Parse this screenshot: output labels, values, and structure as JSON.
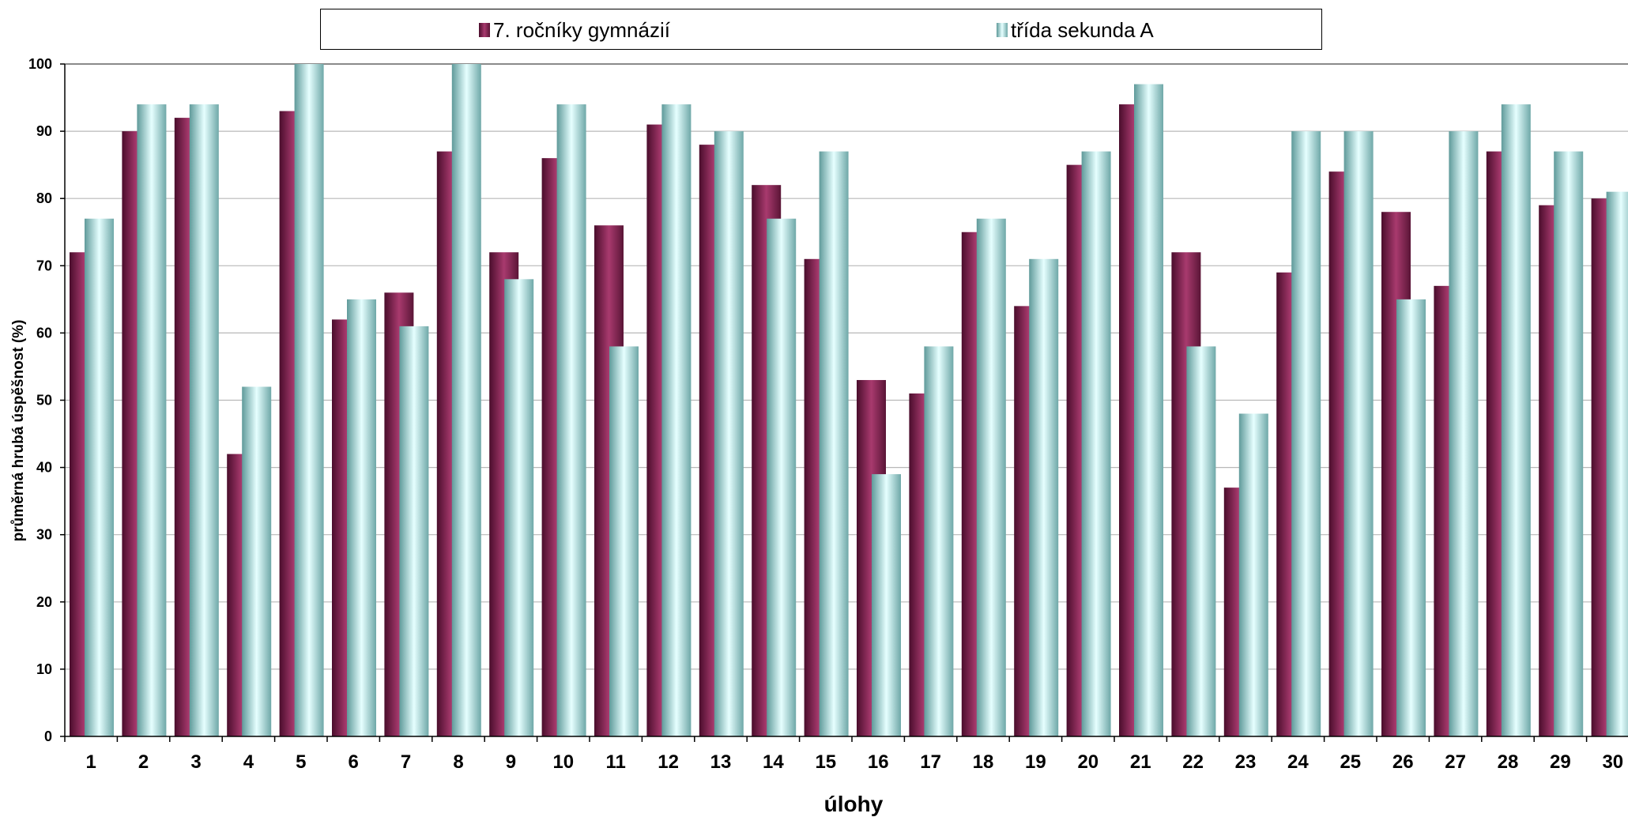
{
  "colors": {
    "series_a": "#8b2d5a",
    "series_b": "#a8eded",
    "grid": "#b8b8b8",
    "axis": "#000000"
  },
  "chart_data": {
    "type": "bar",
    "xlabel": "úlohy",
    "ylabel": "průměrná hrubá úspěšnost (%)",
    "ylim": [
      0,
      100
    ],
    "yticks": [
      0,
      10,
      20,
      30,
      40,
      50,
      60,
      70,
      80,
      90,
      100
    ],
    "grid": true,
    "legend_position": "top",
    "categories": [
      "1",
      "2",
      "3",
      "4",
      "5",
      "6",
      "7",
      "8",
      "9",
      "10",
      "11",
      "12",
      "13",
      "14",
      "15",
      "16",
      "17",
      "18",
      "19",
      "20",
      "21",
      "22",
      "23",
      "24",
      "25",
      "26",
      "27",
      "28",
      "29",
      "30"
    ],
    "series": [
      {
        "name": "7. ročníky gymnázií",
        "values": [
          72,
          90,
          92,
          42,
          93,
          62,
          66,
          87,
          72,
          86,
          76,
          91,
          88,
          82,
          71,
          53,
          51,
          75,
          64,
          85,
          94,
          72,
          37,
          69,
          84,
          78,
          67,
          87,
          79,
          80
        ]
      },
      {
        "name": "třída  sekunda A",
        "values": [
          77,
          94,
          94,
          52,
          100,
          65,
          61,
          100,
          68,
          94,
          58,
          94,
          90,
          77,
          87,
          39,
          58,
          77,
          71,
          87,
          97,
          58,
          48,
          90,
          90,
          65,
          90,
          94,
          87,
          81
        ]
      }
    ]
  }
}
